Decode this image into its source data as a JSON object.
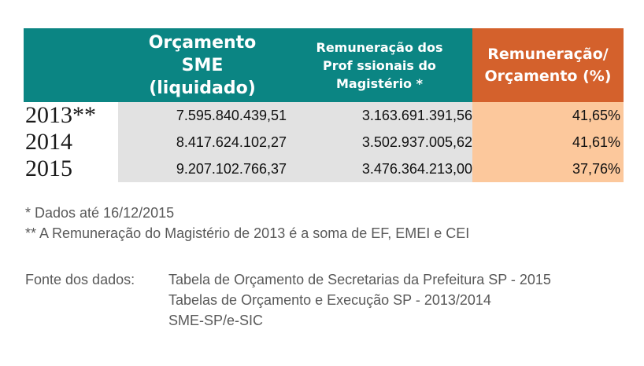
{
  "chart_data": {
    "type": "table",
    "columns": [
      "",
      "Orçamento SME (liquidado)",
      "Remuneração dos Prof ssionais do Magistério *",
      "Remuneração/ Orçamento (%)"
    ],
    "header_lines": {
      "col1": [
        "Orçamento",
        "SME",
        "(liquidado)"
      ],
      "col2": [
        "Remuneração dos",
        "Prof ssionais do",
        "Magistério *"
      ],
      "col3": [
        "Remuneração/",
        "Orçamento (%)"
      ]
    },
    "rows": [
      {
        "year": "2013**",
        "orcamento": "7.595.840.439,51",
        "remuneracao": "3.163.691.391,56",
        "percent": "41,65%"
      },
      {
        "year": "2014",
        "orcamento": "8.417.624.102,27",
        "remuneracao": "3.502.937.005,62",
        "percent": "41,61%"
      },
      {
        "year": "2015",
        "orcamento": "9.207.102.766,37",
        "remuneracao": "3.476.364.213,00",
        "percent": "37,76%"
      }
    ]
  },
  "notes": [
    "* Dados até 16/12/2015",
    "** A Remuneração do Magistério de 2013 é a soma de EF, EMEI e CEI"
  ],
  "source": {
    "label": "Fonte dos dados:",
    "lines": [
      "Tabela de Orçamento de Secretarias da Prefeitura SP - 2015",
      "Tabelas de Orçamento e Execução SP - 2013/2014",
      "SME-SP/e-SIC"
    ]
  },
  "colors": {
    "header_teal": "#0b8583",
    "header_orange": "#d4612c",
    "cell_gray": "#e2e2e2",
    "cell_peach": "#fcc89c"
  }
}
